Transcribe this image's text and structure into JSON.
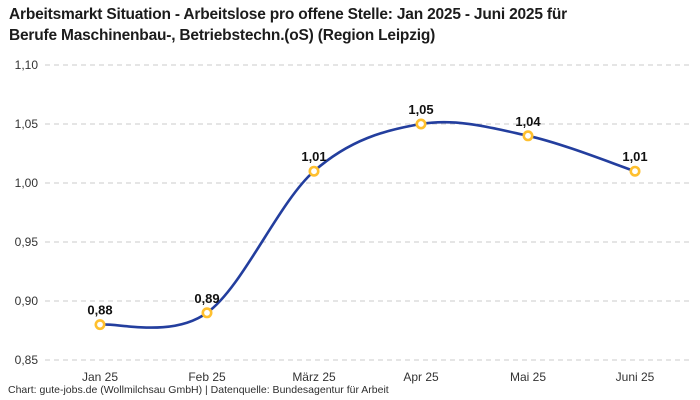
{
  "chart_data": {
    "type": "line",
    "curve": "spline",
    "title": "Arbeitsmarkt Situation - Arbeitslose pro offene Stelle: Jan 2025 - Juni 2025 für Berufe Maschinenbau-, Betriebstechn.(oS) (Region Leipzig)",
    "title_lines": [
      "Arbeitsmarkt Situation - Arbeitslose pro offene Stelle: Jan 2025 - Juni 2025 für",
      "Berufe Maschinenbau-, Betriebstechn.(oS) (Region Leipzig)"
    ],
    "categories": [
      "Jan 25",
      "Feb 25",
      "März 25",
      "Apr 25",
      "Mai 25",
      "Juni 25"
    ],
    "values": [
      0.88,
      0.89,
      1.01,
      1.05,
      1.04,
      1.01
    ],
    "value_labels": [
      "0,88",
      "0,89",
      "1,01",
      "1,05",
      "1,04",
      "1,01"
    ],
    "xlabel": "",
    "ylabel": "",
    "ylim": [
      0.85,
      1.1
    ],
    "yticks": [
      0.85,
      0.9,
      0.95,
      1.0,
      1.05,
      1.1
    ],
    "ytick_labels": [
      "0,85",
      "0,90",
      "0,95",
      "1,00",
      "1,05",
      "1,10"
    ],
    "legend": "none",
    "grid": "horizontal-dashed",
    "colors": {
      "line": "#233E9E",
      "marker_ring": "#FFC02E",
      "marker_fill": "#FFFFFF",
      "grid": "#CBCBCB",
      "value_label": "#111111",
      "axis_text": "#333333",
      "title": "#1C1C1C",
      "background": "#FFFFFF"
    }
  },
  "footer": {
    "text": "Chart: gute-jobs.de (Wollmilchsau GmbH) | Datenquelle: Bundesagentur für Arbeit"
  }
}
